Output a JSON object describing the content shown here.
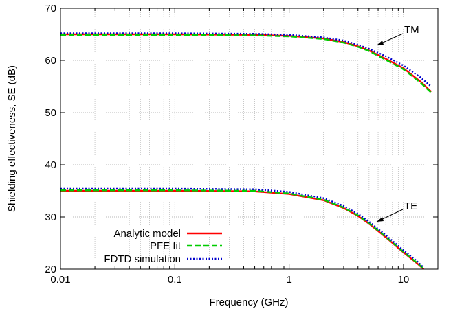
{
  "chart_data": {
    "type": "line",
    "title": "",
    "xlabel": "Frequency (GHz)",
    "ylabel": "Shielding effectiveness, SE (dB)",
    "xscale": "log",
    "xlim": [
      0.01,
      20
    ],
    "ylim": [
      20,
      70
    ],
    "grid": true,
    "legend_position": "bottom-left",
    "xticks": [
      {
        "value": 0.01,
        "label": "0.01"
      },
      {
        "value": 0.1,
        "label": "0.1"
      },
      {
        "value": 1,
        "label": "1"
      },
      {
        "value": 10,
        "label": "10"
      }
    ],
    "yticks": [
      {
        "value": 20,
        "label": "20"
      },
      {
        "value": 30,
        "label": "30"
      },
      {
        "value": 40,
        "label": "40"
      },
      {
        "value": 50,
        "label": "50"
      },
      {
        "value": 60,
        "label": "60"
      },
      {
        "value": 70,
        "label": "70"
      }
    ],
    "series": [
      {
        "name": "Analytic model",
        "group": "TM",
        "color": "#ff0000",
        "style": "solid",
        "x": [
          0.01,
          0.1,
          0.5,
          1,
          2,
          3,
          4,
          5,
          7,
          10,
          14,
          17.5
        ],
        "y": [
          65.0,
          65.0,
          64.9,
          64.7,
          64.2,
          63.5,
          62.7,
          61.9,
          60.3,
          58.5,
          56.0,
          54.0
        ]
      },
      {
        "name": "PFE fit",
        "group": "TM",
        "color": "#00cc00",
        "style": "dashed",
        "x": [
          0.01,
          0.1,
          0.5,
          1,
          2,
          3,
          4,
          5,
          7,
          10,
          14,
          17.5
        ],
        "y": [
          64.9,
          64.9,
          64.8,
          64.6,
          64.1,
          63.4,
          62.6,
          61.8,
          60.1,
          58.3,
          55.8,
          53.8
        ]
      },
      {
        "name": "FDTD simulation",
        "group": "TM",
        "color": "#0000cc",
        "style": "dotted",
        "x": [
          0.01,
          0.1,
          0.5,
          1,
          2,
          3,
          4,
          5,
          7,
          10,
          14,
          17.5
        ],
        "y": [
          65.2,
          65.2,
          65.1,
          64.9,
          64.4,
          63.8,
          63.0,
          62.2,
          60.8,
          59.0,
          56.8,
          55.0
        ]
      },
      {
        "name": "Analytic model",
        "group": "TE",
        "color": "#ff0000",
        "style": "solid",
        "x": [
          0.01,
          0.1,
          0.5,
          1,
          2,
          3,
          4,
          5,
          7,
          10,
          13,
          15
        ],
        "y": [
          35.0,
          35.0,
          34.9,
          34.4,
          33.2,
          31.7,
          30.2,
          28.7,
          26.1,
          23.2,
          21.2,
          20.0
        ]
      },
      {
        "name": "PFE fit",
        "group": "TE",
        "color": "#00cc00",
        "style": "dashed",
        "x": [
          0.01,
          0.1,
          0.5,
          1,
          2,
          3,
          4,
          5,
          7,
          10,
          13,
          15
        ],
        "y": [
          35.1,
          35.1,
          35.0,
          34.5,
          33.3,
          31.8,
          30.3,
          28.8,
          26.2,
          23.3,
          21.3,
          20.1
        ]
      },
      {
        "name": "FDTD simulation",
        "group": "TE",
        "color": "#0000cc",
        "style": "dotted",
        "x": [
          0.01,
          0.1,
          0.5,
          1,
          2,
          3,
          4,
          5,
          7,
          10,
          13,
          15
        ],
        "y": [
          35.4,
          35.4,
          35.3,
          34.8,
          33.6,
          32.1,
          30.6,
          29.1,
          26.5,
          23.6,
          21.6,
          20.3
        ]
      }
    ],
    "legend": [
      {
        "label": "Analytic model",
        "color": "#ff0000",
        "style": "solid"
      },
      {
        "label": "PFE fit",
        "color": "#00cc00",
        "style": "dashed"
      },
      {
        "label": "FDTD simulation",
        "color": "#0000cc",
        "style": "dotted"
      }
    ],
    "annotations": [
      {
        "text": "TM",
        "points_to": {
          "x": 6.0,
          "y": 61.8
        }
      },
      {
        "text": "TE",
        "points_to": {
          "x": 6.0,
          "y": 28.8
        }
      }
    ]
  }
}
